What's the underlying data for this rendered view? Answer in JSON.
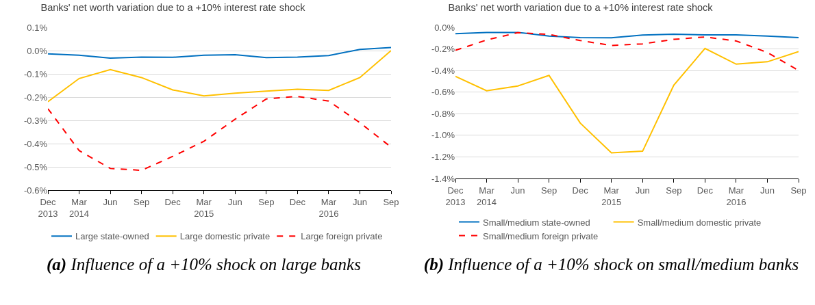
{
  "chart_data": [
    {
      "type": "line",
      "title": "Banks' net worth variation due to a +10% interest rate shock",
      "categories": [
        "Dec\n2013",
        "Mar\n2014",
        "Jun",
        "Sep",
        "Dec",
        "Mar\n2015",
        "Jun",
        "Sep",
        "Dec",
        "Mar\n2016",
        "Jun",
        "Sep"
      ],
      "series": [
        {
          "name": "Large state-owned",
          "color": "#0070c0",
          "line_style": "solid",
          "values": [
            -0.014,
            -0.02,
            -0.032,
            -0.028,
            -0.029,
            -0.02,
            -0.018,
            -0.03,
            -0.028,
            -0.021,
            0.005,
            0.013
          ]
        },
        {
          "name": "Large domestic private",
          "color": "#ffc000",
          "line_style": "solid",
          "values": [
            -0.22,
            -0.12,
            -0.082,
            -0.116,
            -0.169,
            -0.195,
            -0.183,
            -0.174,
            -0.166,
            -0.171,
            -0.116,
            0.0
          ]
        },
        {
          "name": "Large foreign private",
          "color": "#ff0000",
          "line_style": "dashed",
          "values": [
            -0.25,
            -0.43,
            -0.507,
            -0.515,
            -0.455,
            -0.39,
            -0.295,
            -0.208,
            -0.197,
            -0.217,
            -0.31,
            -0.415
          ]
        }
      ],
      "ylim": [
        -0.6,
        0.1
      ],
      "yticks": [
        {
          "value": -0.6,
          "label": "-0.6%"
        },
        {
          "value": -0.5,
          "label": "-0.5%"
        },
        {
          "value": -0.4,
          "label": "-0.4%"
        },
        {
          "value": -0.3,
          "label": "-0.3%"
        },
        {
          "value": -0.2,
          "label": "-0.2%"
        },
        {
          "value": -0.1,
          "label": "-0.1%"
        },
        {
          "value": 0,
          "label": "0.0%"
        },
        {
          "value": 0.1,
          "label": "0.1%"
        }
      ],
      "grid": "y",
      "legend": "bottom",
      "marker": "none",
      "annotations": [
        "(a) Influence of a +10% shock on large banks"
      ]
    },
    {
      "type": "line",
      "title": "Banks' net worth variation due to a +10% interest rate shock",
      "categories": [
        "Dec\n2013",
        "Mar\n2014",
        "Jun",
        "Sep",
        "Dec",
        "Mar\n2015",
        "Jun",
        "Sep",
        "Dec",
        "Mar\n2016",
        "Jun",
        "Sep"
      ],
      "series": [
        {
          "name": "Small/medium state-owned",
          "color": "#0070c0",
          "line_style": "solid",
          "values": [
            -0.058,
            -0.047,
            -0.047,
            -0.08,
            -0.095,
            -0.097,
            -0.071,
            -0.064,
            -0.069,
            -0.069,
            -0.08,
            -0.095
          ]
        },
        {
          "name": "Small/medium domestic private",
          "color": "#ffc000",
          "line_style": "solid",
          "values": [
            -0.454,
            -0.587,
            -0.543,
            -0.445,
            -0.886,
            -1.163,
            -1.147,
            -0.536,
            -0.195,
            -0.341,
            -0.319,
            -0.224
          ]
        },
        {
          "name": "Small/medium foreign private",
          "color": "#ff0000",
          "line_style": "dashed",
          "values": [
            -0.213,
            -0.117,
            -0.049,
            -0.066,
            -0.122,
            -0.168,
            -0.153,
            -0.111,
            -0.089,
            -0.126,
            -0.233,
            -0.399
          ]
        }
      ],
      "ylim": [
        -1.4,
        0
      ],
      "yticks": [
        {
          "value": -1.4,
          "label": "-1.4%"
        },
        {
          "value": -1.2,
          "label": "-1.2%"
        },
        {
          "value": -1.0,
          "label": "-1.0%"
        },
        {
          "value": -0.8,
          "label": "-0.8%"
        },
        {
          "value": -0.6,
          "label": "-0.6%"
        },
        {
          "value": -0.4,
          "label": "-0.4%"
        },
        {
          "value": -0.2,
          "label": "-0.2%"
        },
        {
          "value": 0,
          "label": "0.0%"
        }
      ],
      "grid": "y",
      "legend": "bottom",
      "marker": "none",
      "annotations": [
        "(b) Influence of a +10% shock on small/medium banks"
      ]
    }
  ]
}
